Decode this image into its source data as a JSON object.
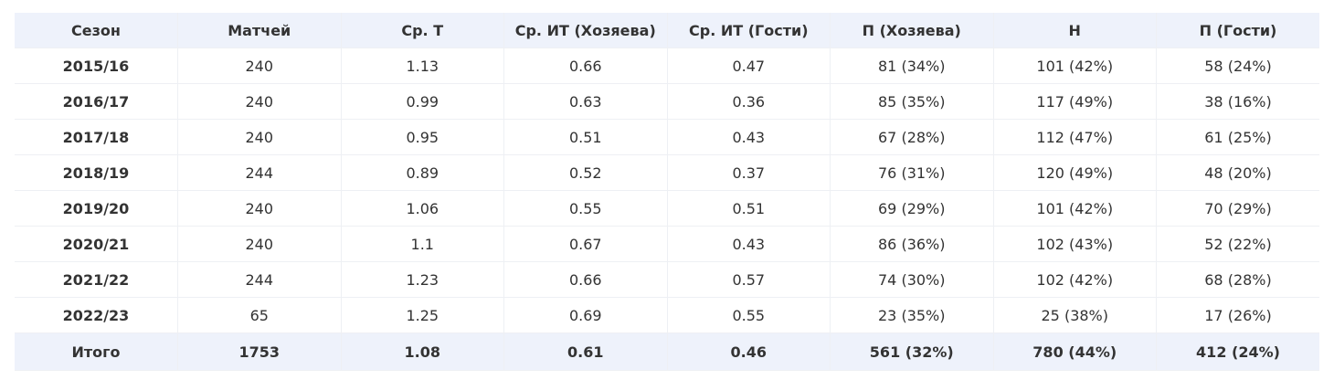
{
  "table": {
    "header": [
      "Сезон",
      "Матчей",
      "Ср. Т",
      "Ср. ИТ (Хозяева)",
      "Ср. ИТ (Гости)",
      "П (Хозяева)",
      "Н",
      "П (Гости)"
    ],
    "rows": [
      [
        "2015/16",
        "240",
        "1.13",
        "0.66",
        "0.47",
        "81 (34%)",
        "101 (42%)",
        "58 (24%)"
      ],
      [
        "2016/17",
        "240",
        "0.99",
        "0.63",
        "0.36",
        "85 (35%)",
        "117 (49%)",
        "38 (16%)"
      ],
      [
        "2017/18",
        "240",
        "0.95",
        "0.51",
        "0.43",
        "67 (28%)",
        "112 (47%)",
        "61 (25%)"
      ],
      [
        "2018/19",
        "244",
        "0.89",
        "0.52",
        "0.37",
        "76 (31%)",
        "120 (49%)",
        "48 (20%)"
      ],
      [
        "2019/20",
        "240",
        "1.06",
        "0.55",
        "0.51",
        "69 (29%)",
        "101 (42%)",
        "70 (29%)"
      ],
      [
        "2020/21",
        "240",
        "1.1",
        "0.67",
        "0.43",
        "86 (36%)",
        "102 (43%)",
        "52 (22%)"
      ],
      [
        "2021/22",
        "244",
        "1.23",
        "0.66",
        "0.57",
        "74 (30%)",
        "102 (42%)",
        "68 (28%)"
      ],
      [
        "2022/23",
        "65",
        "1.25",
        "0.69",
        "0.55",
        "23 (35%)",
        "25 (38%)",
        "17 (26%)"
      ]
    ],
    "footer": [
      "Итого",
      "1753",
      "1.08",
      "0.61",
      "0.46",
      "561 (32%)",
      "780 (44%)",
      "412 (24%)"
    ]
  }
}
